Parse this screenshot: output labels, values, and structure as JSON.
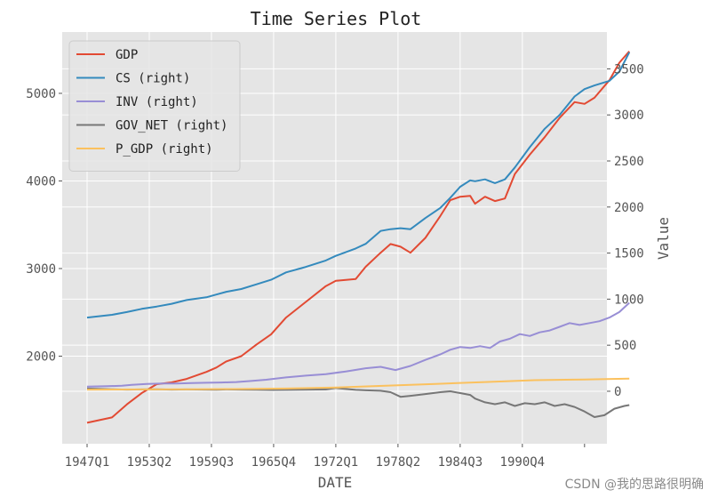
{
  "chart_data": {
    "type": "line",
    "title": "Time Series Plot",
    "xlabel": "DATE",
    "ylabel_left": "",
    "ylabel_right": "Value",
    "x_tick_labels": [
      "1947Q1",
      "1953Q2",
      "1959Q3",
      "1965Q4",
      "1972Q1",
      "1978Q2",
      "1984Q3",
      "1990Q4"
    ],
    "x_tick_positions": [
      0,
      25,
      50,
      75,
      100,
      125,
      150,
      175
    ],
    "x_range": [
      -10,
      209
    ],
    "left_ylim": [
      1000,
      5700
    ],
    "left_yticks": [
      2000,
      3000,
      4000,
      5000
    ],
    "right_ylim": [
      -570,
      3900
    ],
    "right_yticks": [
      0,
      500,
      1000,
      1500,
      2000,
      2500,
      3000,
      3500
    ],
    "grid": true,
    "legend_position": "upper-left",
    "series": [
      {
        "name": "GDP",
        "axis": "left",
        "color": "#E24A33",
        "points": [
          [
            0,
            1240
          ],
          [
            10,
            1300
          ],
          [
            16,
            1450
          ],
          [
            22,
            1580
          ],
          [
            28,
            1680
          ],
          [
            34,
            1700
          ],
          [
            40,
            1740
          ],
          [
            48,
            1820
          ],
          [
            52,
            1870
          ],
          [
            56,
            1940
          ],
          [
            62,
            2000
          ],
          [
            68,
            2130
          ],
          [
            74,
            2250
          ],
          [
            80,
            2440
          ],
          [
            88,
            2620
          ],
          [
            96,
            2800
          ],
          [
            100,
            2860
          ],
          [
            108,
            2880
          ],
          [
            112,
            3020
          ],
          [
            118,
            3180
          ],
          [
            122,
            3280
          ],
          [
            126,
            3250
          ],
          [
            130,
            3180
          ],
          [
            136,
            3350
          ],
          [
            142,
            3600
          ],
          [
            146,
            3780
          ],
          [
            150,
            3820
          ],
          [
            154,
            3830
          ],
          [
            156,
            3740
          ],
          [
            160,
            3820
          ],
          [
            164,
            3770
          ],
          [
            168,
            3800
          ],
          [
            172,
            4080
          ],
          [
            178,
            4300
          ],
          [
            184,
            4500
          ],
          [
            190,
            4720
          ],
          [
            196,
            4900
          ],
          [
            200,
            4880
          ],
          [
            204,
            4950
          ],
          [
            210,
            5150
          ],
          [
            214,
            5350
          ],
          [
            218,
            5480
          ]
        ]
      },
      {
        "name": "CS (right)",
        "axis": "right",
        "color": "#348ABD",
        "points": [
          [
            0,
            800
          ],
          [
            10,
            830
          ],
          [
            16,
            860
          ],
          [
            22,
            895
          ],
          [
            28,
            920
          ],
          [
            34,
            950
          ],
          [
            40,
            990
          ],
          [
            48,
            1020
          ],
          [
            52,
            1050
          ],
          [
            56,
            1080
          ],
          [
            62,
            1110
          ],
          [
            68,
            1160
          ],
          [
            74,
            1210
          ],
          [
            80,
            1290
          ],
          [
            88,
            1350
          ],
          [
            96,
            1420
          ],
          [
            100,
            1470
          ],
          [
            108,
            1550
          ],
          [
            112,
            1600
          ],
          [
            118,
            1740
          ],
          [
            122,
            1760
          ],
          [
            126,
            1770
          ],
          [
            130,
            1760
          ],
          [
            136,
            1880
          ],
          [
            142,
            1990
          ],
          [
            146,
            2100
          ],
          [
            150,
            2220
          ],
          [
            154,
            2290
          ],
          [
            156,
            2280
          ],
          [
            160,
            2300
          ],
          [
            164,
            2260
          ],
          [
            168,
            2300
          ],
          [
            172,
            2430
          ],
          [
            178,
            2650
          ],
          [
            184,
            2850
          ],
          [
            190,
            3000
          ],
          [
            196,
            3200
          ],
          [
            200,
            3280
          ],
          [
            204,
            3320
          ],
          [
            210,
            3370
          ],
          [
            214,
            3470
          ],
          [
            218,
            3680
          ]
        ]
      },
      {
        "name": "INV (right)",
        "axis": "right",
        "color": "#988ED5",
        "points": [
          [
            0,
            50
          ],
          [
            8,
            55
          ],
          [
            14,
            60
          ],
          [
            18,
            70
          ],
          [
            24,
            80
          ],
          [
            30,
            85
          ],
          [
            36,
            85
          ],
          [
            42,
            88
          ],
          [
            48,
            92
          ],
          [
            54,
            95
          ],
          [
            60,
            100
          ],
          [
            66,
            112
          ],
          [
            72,
            125
          ],
          [
            80,
            150
          ],
          [
            88,
            170
          ],
          [
            96,
            185
          ],
          [
            104,
            215
          ],
          [
            112,
            250
          ],
          [
            118,
            265
          ],
          [
            124,
            230
          ],
          [
            130,
            275
          ],
          [
            136,
            340
          ],
          [
            142,
            400
          ],
          [
            146,
            450
          ],
          [
            150,
            480
          ],
          [
            154,
            470
          ],
          [
            158,
            490
          ],
          [
            162,
            470
          ],
          [
            166,
            540
          ],
          [
            170,
            570
          ],
          [
            174,
            620
          ],
          [
            178,
            600
          ],
          [
            182,
            640
          ],
          [
            186,
            660
          ],
          [
            190,
            700
          ],
          [
            194,
            740
          ],
          [
            198,
            720
          ],
          [
            202,
            740
          ],
          [
            206,
            760
          ],
          [
            210,
            800
          ],
          [
            214,
            860
          ],
          [
            218,
            960
          ]
        ]
      },
      {
        "name": "GOV_NET (right)",
        "axis": "right",
        "color": "#777777",
        "points": [
          [
            0,
            30
          ],
          [
            10,
            22
          ],
          [
            16,
            18
          ],
          [
            22,
            20
          ],
          [
            28,
            22
          ],
          [
            34,
            18
          ],
          [
            40,
            20
          ],
          [
            48,
            18
          ],
          [
            52,
            16
          ],
          [
            56,
            20
          ],
          [
            62,
            18
          ],
          [
            68,
            16
          ],
          [
            74,
            14
          ],
          [
            80,
            15
          ],
          [
            88,
            18
          ],
          [
            96,
            20
          ],
          [
            100,
            35
          ],
          [
            108,
            15
          ],
          [
            112,
            10
          ],
          [
            118,
            5
          ],
          [
            122,
            -10
          ],
          [
            126,
            -60
          ],
          [
            130,
            -50
          ],
          [
            136,
            -30
          ],
          [
            142,
            -10
          ],
          [
            146,
            0
          ],
          [
            150,
            -20
          ],
          [
            154,
            -40
          ],
          [
            156,
            -80
          ],
          [
            160,
            -120
          ],
          [
            164,
            -140
          ],
          [
            168,
            -120
          ],
          [
            172,
            -160
          ],
          [
            176,
            -130
          ],
          [
            180,
            -140
          ],
          [
            184,
            -120
          ],
          [
            188,
            -160
          ],
          [
            192,
            -140
          ],
          [
            196,
            -170
          ],
          [
            200,
            -220
          ],
          [
            204,
            -280
          ],
          [
            208,
            -260
          ],
          [
            212,
            -190
          ],
          [
            216,
            -160
          ],
          [
            218,
            -150
          ]
        ]
      },
      {
        "name": "P_GDP (right)",
        "axis": "right",
        "color": "#FBC15E",
        "points": [
          [
            0,
            18
          ],
          [
            20,
            20
          ],
          [
            40,
            22
          ],
          [
            60,
            24
          ],
          [
            80,
            30
          ],
          [
            100,
            40
          ],
          [
            120,
            60
          ],
          [
            140,
            80
          ],
          [
            160,
            100
          ],
          [
            180,
            120
          ],
          [
            200,
            128
          ],
          [
            218,
            138
          ]
        ]
      }
    ]
  },
  "watermark": "CSDN @我的思路很明确"
}
